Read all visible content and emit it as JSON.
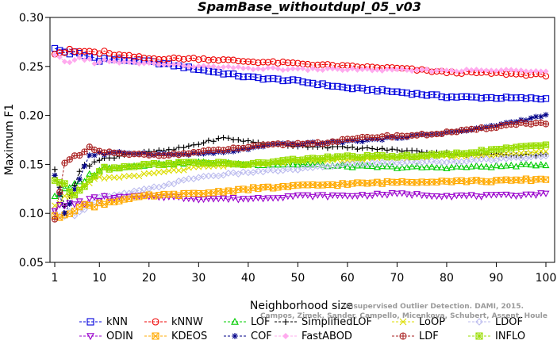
{
  "chart_data": {
    "type": "line",
    "title": "SpamBase_withoutdupl_05_v03",
    "xlabel": "Neighborhood size",
    "ylabel": "Maximum F1",
    "xlim": [
      0,
      100
    ],
    "ylim": [
      0.05,
      0.3
    ],
    "xticks": [
      1,
      10,
      20,
      30,
      40,
      50,
      60,
      70,
      80,
      90,
      100
    ],
    "yticks": [
      "0.05",
      "0.10",
      "0.15",
      "0.20",
      "0.25",
      "0.30"
    ],
    "grid": false,
    "legend_position": "bottom",
    "watermark": [
      "Unsupervised Outlier Detection. DAMI, 2015.",
      "Campos, Zimek, Sander, Campello, Micenkova, Schubert, Assent, Houle"
    ],
    "series": [
      {
        "name": "kNN",
        "color": "#0000dd",
        "marker": "square",
        "keypoints": [
          [
            1,
            0.267
          ],
          [
            5,
            0.263
          ],
          [
            10,
            0.258
          ],
          [
            20,
            0.255
          ],
          [
            30,
            0.247
          ],
          [
            40,
            0.239
          ],
          [
            50,
            0.235
          ],
          [
            60,
            0.228
          ],
          [
            70,
            0.224
          ],
          [
            80,
            0.219
          ],
          [
            90,
            0.218
          ],
          [
            100,
            0.217
          ]
        ]
      },
      {
        "name": "kNNW",
        "color": "#ee0000",
        "marker": "circle",
        "keypoints": [
          [
            1,
            0.265
          ],
          [
            8,
            0.265
          ],
          [
            20,
            0.258
          ],
          [
            30,
            0.258
          ],
          [
            40,
            0.255
          ],
          [
            50,
            0.253
          ],
          [
            60,
            0.25
          ],
          [
            70,
            0.248
          ],
          [
            80,
            0.244
          ],
          [
            90,
            0.243
          ],
          [
            100,
            0.241
          ]
        ]
      },
      {
        "name": "LOF",
        "color": "#00cc00",
        "marker": "triangle-up",
        "keypoints": [
          [
            1,
            0.118
          ],
          [
            5,
            0.128
          ],
          [
            10,
            0.145
          ],
          [
            20,
            0.15
          ],
          [
            30,
            0.152
          ],
          [
            40,
            0.15
          ],
          [
            50,
            0.15
          ],
          [
            60,
            0.148
          ],
          [
            70,
            0.147
          ],
          [
            80,
            0.147
          ],
          [
            90,
            0.148
          ],
          [
            100,
            0.15
          ]
        ]
      },
      {
        "name": "SimplifiedLOF",
        "color": "#000000",
        "marker": "plus",
        "keypoints": [
          [
            1,
            0.143
          ],
          [
            3,
            0.11
          ],
          [
            7,
            0.15
          ],
          [
            15,
            0.16
          ],
          [
            25,
            0.165
          ],
          [
            35,
            0.177
          ],
          [
            45,
            0.17
          ],
          [
            55,
            0.168
          ],
          [
            65,
            0.166
          ],
          [
            75,
            0.163
          ],
          [
            85,
            0.16
          ],
          [
            100,
            0.16
          ]
        ]
      },
      {
        "name": "LoOP",
        "color": "#dddd00",
        "marker": "x",
        "keypoints": [
          [
            1,
            0.11
          ],
          [
            5,
            0.122
          ],
          [
            10,
            0.135
          ],
          [
            20,
            0.14
          ],
          [
            30,
            0.147
          ],
          [
            40,
            0.15
          ],
          [
            50,
            0.153
          ],
          [
            60,
            0.155
          ],
          [
            70,
            0.157
          ],
          [
            80,
            0.158
          ],
          [
            90,
            0.16
          ],
          [
            100,
            0.163
          ]
        ]
      },
      {
        "name": "LDOF",
        "color": "#bbbbee",
        "marker": "diamond",
        "keypoints": [
          [
            1,
            0.1
          ],
          [
            5,
            0.1
          ],
          [
            10,
            0.115
          ],
          [
            20,
            0.125
          ],
          [
            30,
            0.137
          ],
          [
            40,
            0.142
          ],
          [
            50,
            0.145
          ],
          [
            60,
            0.15
          ],
          [
            70,
            0.152
          ],
          [
            80,
            0.153
          ],
          [
            90,
            0.155
          ],
          [
            100,
            0.158
          ]
        ]
      },
      {
        "name": "ODIN",
        "color": "#9900cc",
        "marker": "triangle-down",
        "keypoints": [
          [
            1,
            0.105
          ],
          [
            5,
            0.11
          ],
          [
            10,
            0.115
          ],
          [
            20,
            0.118
          ],
          [
            30,
            0.115
          ],
          [
            40,
            0.115
          ],
          [
            50,
            0.118
          ],
          [
            60,
            0.118
          ],
          [
            70,
            0.12
          ],
          [
            80,
            0.118
          ],
          [
            90,
            0.118
          ],
          [
            100,
            0.12
          ]
        ]
      },
      {
        "name": "KDEOS",
        "color": "#ffaa00",
        "marker": "square-x",
        "keypoints": [
          [
            1,
            0.095
          ],
          [
            5,
            0.105
          ],
          [
            10,
            0.11
          ],
          [
            20,
            0.118
          ],
          [
            30,
            0.12
          ],
          [
            40,
            0.125
          ],
          [
            50,
            0.128
          ],
          [
            60,
            0.13
          ],
          [
            70,
            0.132
          ],
          [
            80,
            0.133
          ],
          [
            90,
            0.133
          ],
          [
            100,
            0.135
          ]
        ]
      },
      {
        "name": "COF",
        "color": "#000088",
        "marker": "star",
        "keypoints": [
          [
            1,
            0.14
          ],
          [
            3,
            0.1
          ],
          [
            8,
            0.16
          ],
          [
            15,
            0.162
          ],
          [
            25,
            0.16
          ],
          [
            35,
            0.162
          ],
          [
            45,
            0.17
          ],
          [
            55,
            0.172
          ],
          [
            65,
            0.175
          ],
          [
            75,
            0.18
          ],
          [
            85,
            0.185
          ],
          [
            95,
            0.195
          ],
          [
            100,
            0.2
          ]
        ]
      },
      {
        "name": "FastABOD",
        "color": "#ffaaee",
        "marker": "diamond-fill",
        "keypoints": [
          [
            1,
            0.26
          ],
          [
            3,
            0.253
          ],
          [
            5,
            0.258
          ],
          [
            10,
            0.255
          ],
          [
            20,
            0.253
          ],
          [
            30,
            0.25
          ],
          [
            40,
            0.248
          ],
          [
            50,
            0.247
          ],
          [
            60,
            0.247
          ],
          [
            70,
            0.246
          ],
          [
            80,
            0.246
          ],
          [
            90,
            0.246
          ],
          [
            100,
            0.246
          ]
        ]
      },
      {
        "name": "LDF",
        "color": "#aa2222",
        "marker": "circle-plus",
        "keypoints": [
          [
            1,
            0.097
          ],
          [
            3,
            0.15
          ],
          [
            8,
            0.165
          ],
          [
            15,
            0.16
          ],
          [
            25,
            0.16
          ],
          [
            35,
            0.165
          ],
          [
            45,
            0.17
          ],
          [
            55,
            0.172
          ],
          [
            65,
            0.178
          ],
          [
            75,
            0.18
          ],
          [
            85,
            0.185
          ],
          [
            95,
            0.192
          ],
          [
            100,
            0.192
          ]
        ]
      },
      {
        "name": "INFLO",
        "color": "#99dd00",
        "marker": "square-star",
        "keypoints": [
          [
            1,
            0.135
          ],
          [
            5,
            0.12
          ],
          [
            10,
            0.145
          ],
          [
            20,
            0.15
          ],
          [
            30,
            0.152
          ],
          [
            40,
            0.15
          ],
          [
            50,
            0.155
          ],
          [
            60,
            0.158
          ],
          [
            70,
            0.158
          ],
          [
            80,
            0.16
          ],
          [
            90,
            0.165
          ],
          [
            100,
            0.17
          ]
        ]
      }
    ]
  }
}
